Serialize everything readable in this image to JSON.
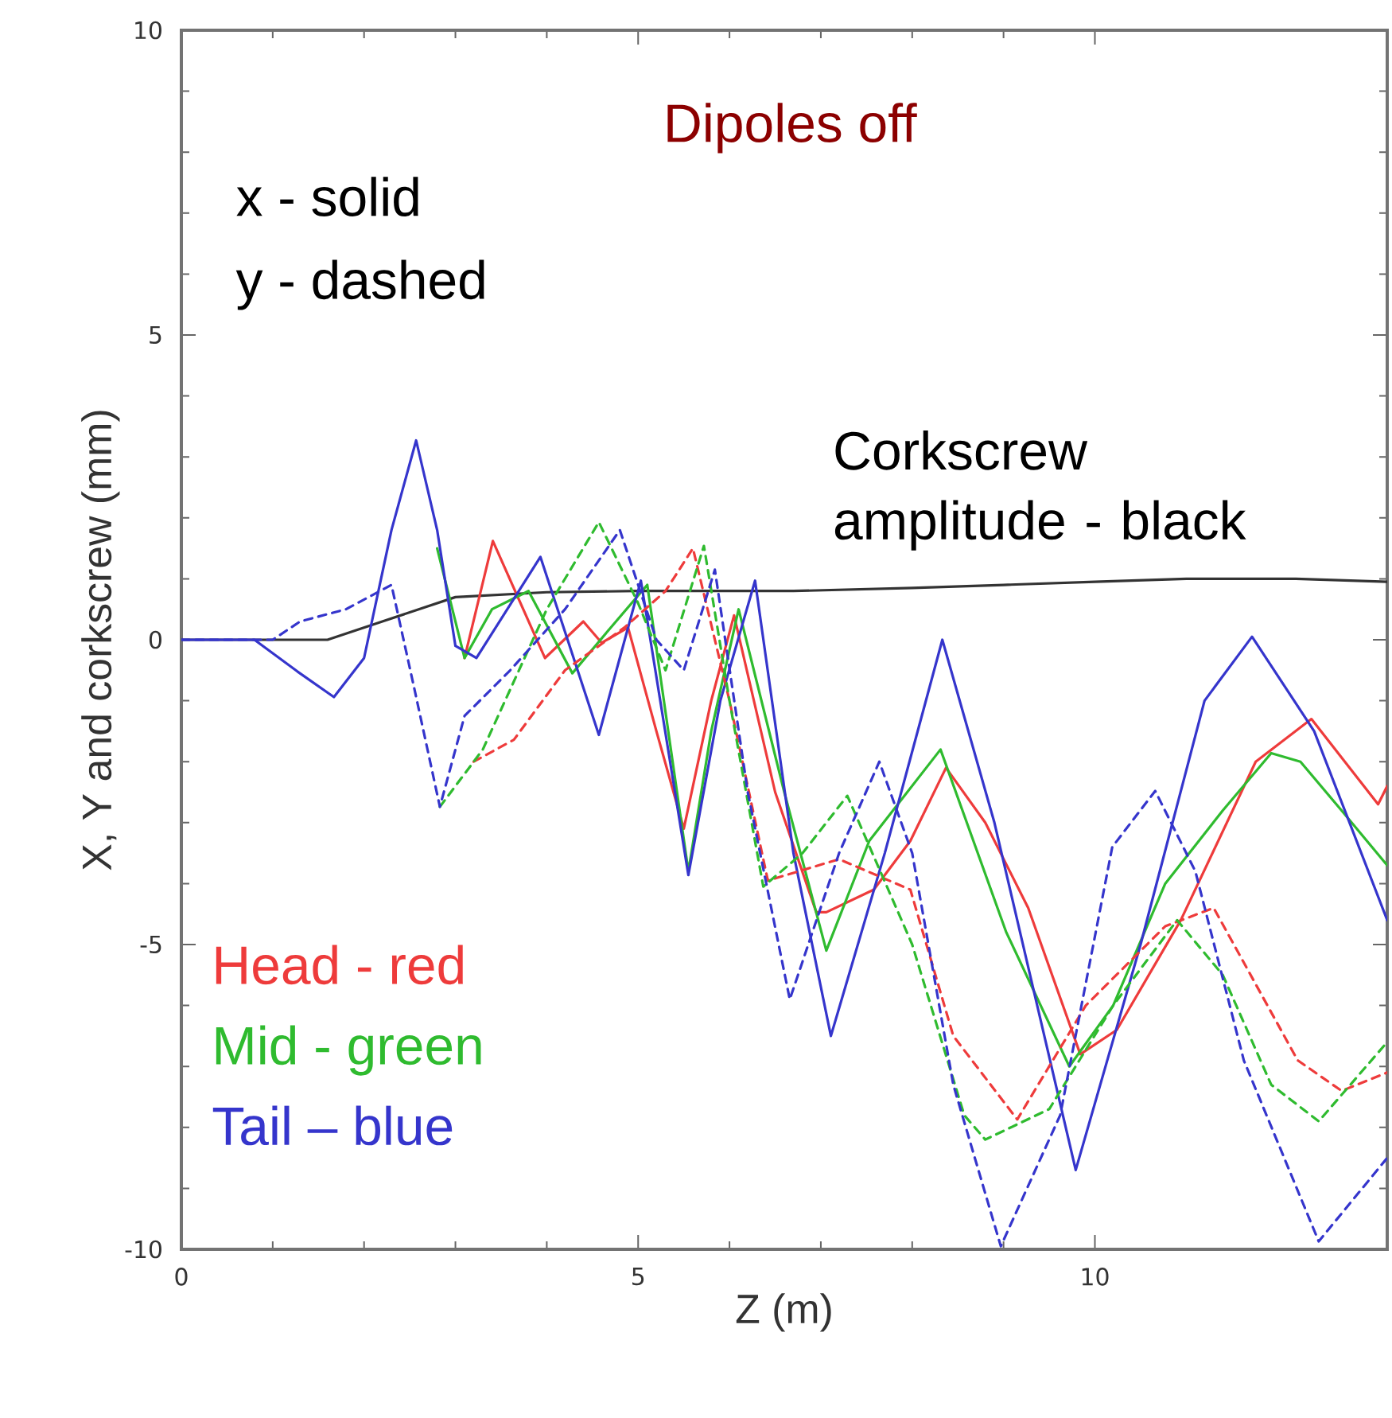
{
  "chart_data": {
    "type": "line",
    "title": "Dipoles off",
    "xlabel": "Z (m)",
    "ylabel": "X, Y and corkscrew (mm)",
    "xlim": [
      0,
      13.2
    ],
    "ylim": [
      -10,
      10
    ],
    "xticks": [
      0,
      5,
      10
    ],
    "yticks": [
      -10,
      -5,
      0,
      5,
      10
    ],
    "annotations": [
      "x - solid",
      "y - dashed",
      "Corkscrew amplitude - black",
      "Head - red",
      "Mid - green",
      "Tail – blue"
    ],
    "series": [
      {
        "color": "#333333",
        "line_style": "solid",
        "x": [
          0,
          1.6,
          2.2,
          3.0,
          4,
          5,
          6.7,
          8,
          9,
          10,
          11,
          12.2,
          13.2
        ],
        "values": [
          0,
          0,
          0.3,
          0.7,
          0.78,
          0.8,
          0.8,
          0.85,
          0.9,
          0.95,
          1.0,
          1.0,
          0.95
        ]
      },
      {
        "color": "#ee3b3b",
        "line_style": "solid",
        "x": [
          3.1,
          3.41,
          3.98,
          4.4,
          4.6,
          4.89,
          5.2,
          5.5,
          5.8,
          6.05,
          6.5,
          6.95,
          7.06,
          7.58,
          7.98,
          8.37,
          8.8,
          9.27,
          9.84,
          10.24,
          10.94,
          11.76,
          12.37,
          13.1,
          13.2
        ],
        "values": [
          -0.3,
          1.62,
          -0.3,
          0.3,
          -0.05,
          0.2,
          -1.5,
          -3.1,
          -1.0,
          0.4,
          -2.5,
          -4.47,
          -4.47,
          -4.1,
          -3.3,
          -2.1,
          -3.0,
          -4.4,
          -6.8,
          -6.4,
          -4.6,
          -2.0,
          -1.3,
          -2.7,
          -2.4
        ]
      },
      {
        "color": "#2fbb2f",
        "line_style": "solid",
        "x": [
          2.8,
          3.1,
          3.4,
          3.8,
          4.28,
          4.7,
          5.1,
          5.55,
          5.8,
          6.1,
          6.6,
          7.06,
          7.53,
          8.31,
          9.03,
          9.72,
          10.2,
          10.77,
          11.4,
          11.93,
          12.25,
          12.7,
          13.2
        ],
        "values": [
          1.5,
          -0.3,
          0.5,
          0.8,
          -0.55,
          0.2,
          0.9,
          -3.8,
          -1.5,
          0.5,
          -2.5,
          -5.1,
          -3.3,
          -1.8,
          -4.8,
          -7.0,
          -6.0,
          -4.0,
          -2.8,
          -1.86,
          -2.0,
          -2.8,
          -3.7
        ]
      },
      {
        "color": "#3535cc",
        "line_style": "solid",
        "x": [
          0,
          0.8,
          1.27,
          1.67,
          2.0,
          2.3,
          2.57,
          2.8,
          3.0,
          3.23,
          3.93,
          4.57,
          5.03,
          5.55,
          5.9,
          6.28,
          6.7,
          7.11,
          7.7,
          8.33,
          8.9,
          9.79,
          10.5,
          11.2,
          11.72,
          12.4,
          13.2
        ],
        "values": [
          0,
          0,
          -0.52,
          -0.94,
          -0.3,
          1.8,
          3.27,
          1.8,
          -0.1,
          -0.3,
          1.36,
          -1.56,
          0.97,
          -3.86,
          -1.0,
          0.97,
          -3.5,
          -6.5,
          -3.5,
          0.0,
          -3.0,
          -8.7,
          -5.0,
          -1.0,
          0.05,
          -1.5,
          -4.6
        ]
      },
      {
        "color": "#ee3b3b",
        "line_style": "dashed",
        "x": [
          3.2,
          3.64,
          4.2,
          4.85,
          5.3,
          5.6,
          6.0,
          6.42,
          7.2,
          7.98,
          8.45,
          9.15,
          9.9,
          10.77,
          11.3,
          12.22,
          12.7,
          13.2
        ],
        "values": [
          -2.0,
          -1.64,
          -0.5,
          0.2,
          0.8,
          1.5,
          -1.0,
          -3.95,
          -3.6,
          -4.1,
          -6.5,
          -7.87,
          -6.0,
          -4.7,
          -4.4,
          -6.9,
          -7.4,
          -7.1
        ]
      },
      {
        "color": "#2fbb2f",
        "line_style": "dashed",
        "x": [
          2.83,
          3.3,
          4.0,
          4.57,
          5.0,
          5.3,
          5.72,
          6.0,
          6.37,
          6.8,
          7.29,
          8.0,
          8.57,
          8.8,
          9.5,
          10.2,
          10.9,
          11.4,
          11.93,
          12.45,
          13.2
        ],
        "values": [
          -2.74,
          -1.8,
          0.5,
          1.93,
          0.6,
          -0.5,
          1.54,
          -1.0,
          -4.05,
          -3.5,
          -2.56,
          -5.0,
          -7.8,
          -8.2,
          -7.7,
          -6.0,
          -4.6,
          -5.5,
          -7.3,
          -7.9,
          -6.6
        ]
      },
      {
        "color": "#3535cc",
        "line_style": "dashed",
        "x": [
          0,
          1.0,
          1.3,
          1.8,
          2.3,
          2.55,
          2.83,
          3.1,
          3.6,
          4.2,
          4.8,
          5.2,
          5.5,
          5.84,
          6.2,
          6.66,
          7.2,
          7.64,
          8.0,
          8.45,
          8.97,
          9.62,
          10.19,
          10.66,
          11.1,
          11.63,
          12.45,
          13.2
        ],
        "values": [
          0,
          0,
          0.3,
          0.5,
          0.9,
          -0.8,
          -2.74,
          -1.25,
          -0.5,
          0.5,
          1.8,
          0.0,
          -0.5,
          1.15,
          -2.5,
          -5.9,
          -3.5,
          -2.0,
          -3.5,
          -7.3,
          -9.95,
          -7.8,
          -3.4,
          -2.48,
          -3.8,
          -6.9,
          -9.87,
          -8.5
        ]
      }
    ]
  }
}
